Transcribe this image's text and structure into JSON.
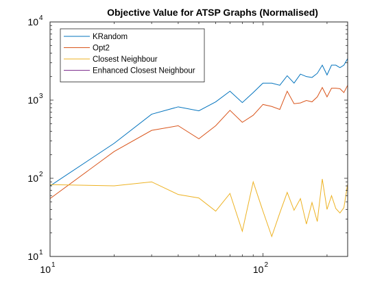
{
  "chart_data": {
    "type": "line",
    "title": "Objective Value for ATSP Graphs (Normalised)",
    "xscale": "log",
    "yscale": "log",
    "xlim": [
      10,
      250
    ],
    "ylim": [
      10,
      10000
    ],
    "x_ticks": [
      {
        "base": "10",
        "exp": "1",
        "value": 10
      },
      {
        "base": "10",
        "exp": "2",
        "value": 100
      }
    ],
    "y_ticks": [
      {
        "base": "10",
        "exp": "1",
        "value": 10
      },
      {
        "base": "10",
        "exp": "2",
        "value": 100
      },
      {
        "base": "10",
        "exp": "3",
        "value": 1000
      },
      {
        "base": "10",
        "exp": "4",
        "value": 10000
      }
    ],
    "legend_position": "top-left",
    "grid": false,
    "series": [
      {
        "name": "KRandom",
        "color": "#0072BD",
        "points": [
          [
            10,
            80
          ],
          [
            20,
            280
          ],
          [
            30,
            660
          ],
          [
            40,
            820
          ],
          [
            50,
            730
          ],
          [
            60,
            950
          ],
          [
            70,
            1300
          ],
          [
            80,
            930
          ],
          [
            90,
            1250
          ],
          [
            100,
            1650
          ],
          [
            110,
            1650
          ],
          [
            120,
            1550
          ],
          [
            130,
            2050
          ],
          [
            140,
            1650
          ],
          [
            150,
            2150
          ],
          [
            160,
            2000
          ],
          [
            170,
            1950
          ],
          [
            180,
            2200
          ],
          [
            190,
            2800
          ],
          [
            200,
            2100
          ],
          [
            210,
            2800
          ],
          [
            220,
            2800
          ],
          [
            230,
            2600
          ],
          [
            240,
            2800
          ],
          [
            250,
            3400
          ]
        ]
      },
      {
        "name": "Opt2",
        "color": "#D95319",
        "points": [
          [
            10,
            55
          ],
          [
            20,
            220
          ],
          [
            30,
            410
          ],
          [
            40,
            470
          ],
          [
            50,
            320
          ],
          [
            60,
            470
          ],
          [
            70,
            740
          ],
          [
            80,
            520
          ],
          [
            90,
            640
          ],
          [
            100,
            880
          ],
          [
            110,
            830
          ],
          [
            120,
            760
          ],
          [
            130,
            1300
          ],
          [
            140,
            900
          ],
          [
            150,
            920
          ],
          [
            160,
            990
          ],
          [
            170,
            950
          ],
          [
            180,
            1100
          ],
          [
            190,
            1450
          ],
          [
            200,
            1100
          ],
          [
            210,
            1420
          ],
          [
            220,
            1420
          ],
          [
            230,
            1400
          ],
          [
            240,
            1250
          ],
          [
            250,
            1550
          ]
        ]
      },
      {
        "name": "Closest Neighbour",
        "color": "#EDB120",
        "points": [
          [
            10,
            83
          ],
          [
            20,
            80
          ],
          [
            30,
            90
          ],
          [
            40,
            62
          ],
          [
            50,
            56
          ],
          [
            60,
            38
          ],
          [
            70,
            64
          ],
          [
            80,
            21
          ],
          [
            90,
            90
          ],
          [
            100,
            38
          ],
          [
            110,
            18
          ],
          [
            120,
            36
          ],
          [
            130,
            66
          ],
          [
            140,
            39
          ],
          [
            150,
            55
          ],
          [
            160,
            26
          ],
          [
            170,
            49
          ],
          [
            180,
            28
          ],
          [
            190,
            98
          ],
          [
            200,
            40
          ],
          [
            210,
            60
          ],
          [
            220,
            41
          ],
          [
            230,
            36
          ],
          [
            240,
            42
          ],
          [
            250,
            85
          ]
        ]
      },
      {
        "name": "Enhanced Closest Neighbour",
        "color": "#7E2F8E",
        "points": []
      }
    ]
  }
}
